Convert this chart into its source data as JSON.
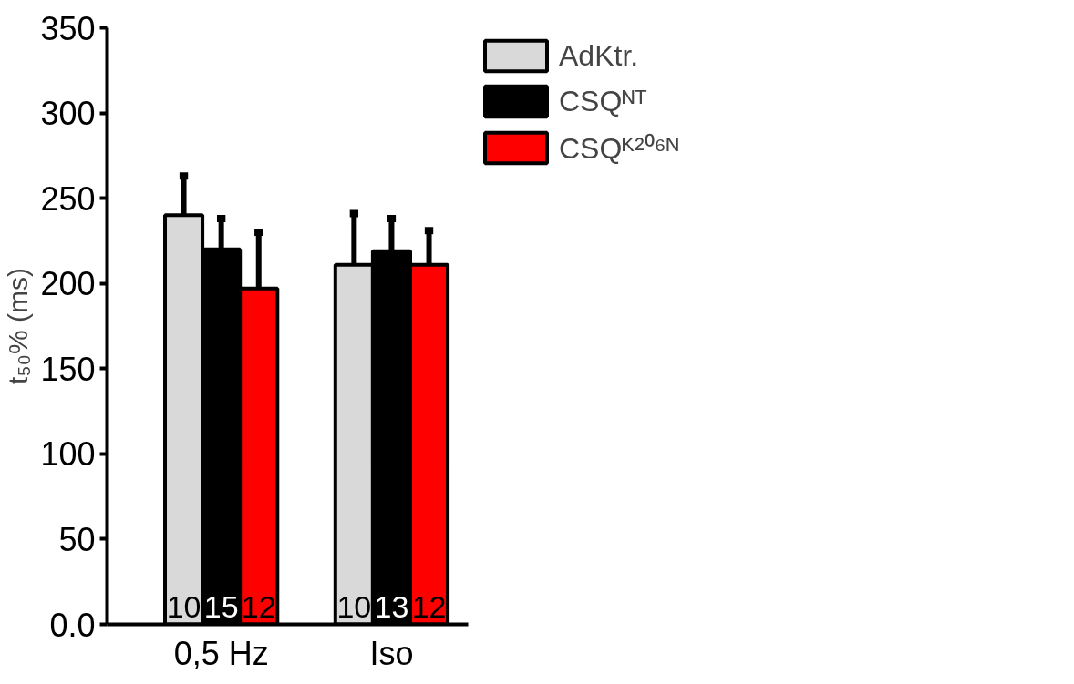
{
  "chart_data": {
    "type": "bar",
    "ylabel": "t₅₀% (ms)",
    "categories": [
      "0,5 Hz",
      "Iso"
    ],
    "series": [
      {
        "name": "AdKtr.",
        "color": "#d9d9d9",
        "values": [
          240,
          211
        ],
        "errors": [
          23,
          30
        ]
      },
      {
        "name": "CSQᴺᵀ",
        "color": "#000000",
        "values": [
          220,
          219
        ],
        "errors": [
          18,
          19
        ]
      },
      {
        "name": "CSQᴷ²⁰⁶ᴺ",
        "color": "#ff0000",
        "values": [
          197,
          211
        ],
        "errors": [
          33,
          20
        ]
      }
    ],
    "annotations": [
      {
        "text": "10",
        "x": "0,5 Hz",
        "y": 0
      },
      {
        "text": "15",
        "x": "0,5 Hz",
        "y": 0
      },
      {
        "text": "12",
        "x": "0,5 Hz",
        "y": 0
      },
      {
        "text": "10",
        "x": "Iso",
        "y": 0
      },
      {
        "text": "13",
        "x": "Iso",
        "y": 0
      },
      {
        "text": "12",
        "x": "Iso",
        "y": 0
      }
    ],
    "ylim": [
      0,
      350
    ],
    "yticks": [
      {
        "value": 0,
        "label": "0.0"
      },
      50,
      100,
      150,
      200,
      250,
      300,
      350
    ],
    "grid": false,
    "legend": "top right"
  }
}
